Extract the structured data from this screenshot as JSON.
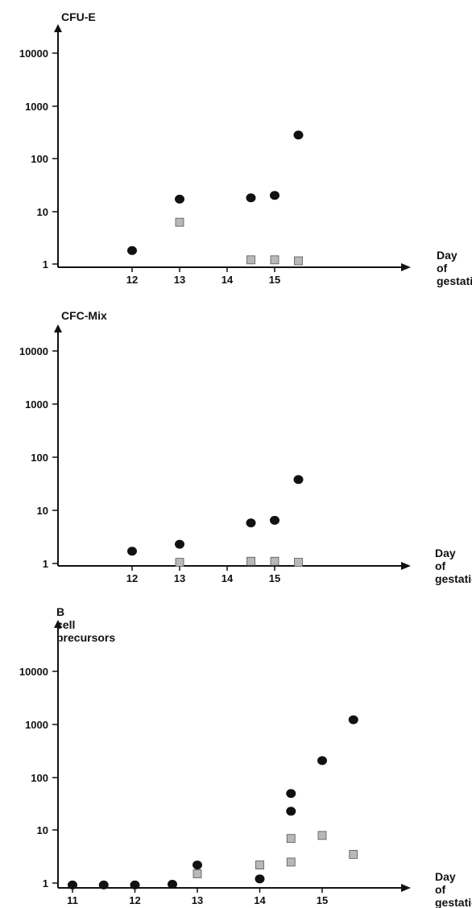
{
  "chart_data": [
    {
      "type": "scatter",
      "title": "CFU-E",
      "xlabel": "Day of gestation",
      "ylabel": "",
      "x_scale": "linear",
      "y_scale": "log",
      "xlim": [
        11,
        16
      ],
      "ylim": [
        1,
        10000
      ],
      "xticks": [
        "12",
        "13",
        "14",
        "15"
      ],
      "yticks": [
        "1",
        "10",
        "100",
        "1000",
        "10000"
      ],
      "grid": false,
      "series": [
        {
          "marker": "circle",
          "color": "#111111",
          "points": [
            [
              12,
              1.8
            ],
            [
              13,
              17
            ],
            [
              14.5,
              18
            ],
            [
              15,
              20
            ],
            [
              15.5,
              280
            ]
          ]
        },
        {
          "marker": "square",
          "color": "#bdbdbd",
          "points": [
            [
              13,
              6.2
            ],
            [
              14.5,
              1.2
            ],
            [
              15,
              1.2
            ],
            [
              15.5,
              1.15
            ]
          ]
        }
      ]
    },
    {
      "type": "scatter",
      "title": "CFC-Mix",
      "xlabel": "Day of gestation",
      "ylabel": "",
      "x_scale": "linear",
      "y_scale": "log",
      "xlim": [
        11,
        16
      ],
      "ylim": [
        1,
        10000
      ],
      "xticks": [
        "12",
        "13",
        "14",
        "15"
      ],
      "yticks": [
        "1",
        "10",
        "100",
        "1000",
        "10000"
      ],
      "grid": false,
      "series": [
        {
          "marker": "circle",
          "color": "#111111",
          "points": [
            [
              12,
              1.7
            ],
            [
              13,
              2.3
            ],
            [
              14.5,
              5.8
            ],
            [
              15,
              6.5
            ],
            [
              15.5,
              38
            ]
          ]
        },
        {
          "marker": "square",
          "color": "#bdbdbd",
          "points": [
            [
              13,
              1.05
            ],
            [
              14.5,
              1.1
            ],
            [
              15,
              1.1
            ],
            [
              15.5,
              1.05
            ]
          ]
        }
      ]
    },
    {
      "type": "scatter",
      "title": "B cell precursors",
      "xlabel": "Day of gestation",
      "ylabel": "",
      "x_scale": "linear",
      "y_scale": "log",
      "xlim": [
        10.8,
        16
      ],
      "ylim": [
        1,
        10000
      ],
      "xticks": [
        "11",
        "12",
        "13",
        "14",
        "15"
      ],
      "yticks": [
        "1",
        "10",
        "100",
        "1000",
        "10000"
      ],
      "grid": false,
      "series": [
        {
          "marker": "circle",
          "color": "#111111",
          "points": [
            [
              11,
              0.92
            ],
            [
              11.5,
              0.92
            ],
            [
              12,
              0.92
            ],
            [
              12.6,
              0.95
            ],
            [
              13,
              2.2
            ],
            [
              14,
              1.2
            ],
            [
              14.5,
              23
            ],
            [
              14.5,
              50
            ],
            [
              15,
              210
            ],
            [
              15.5,
              1250
            ]
          ]
        },
        {
          "marker": "square",
          "color": "#bdbdbd",
          "points": [
            [
              13,
              1.5
            ],
            [
              14,
              2.2
            ],
            [
              14.5,
              2.5
            ],
            [
              14.5,
              7
            ],
            [
              15,
              8
            ],
            [
              15.5,
              3.5
            ]
          ]
        }
      ]
    }
  ]
}
